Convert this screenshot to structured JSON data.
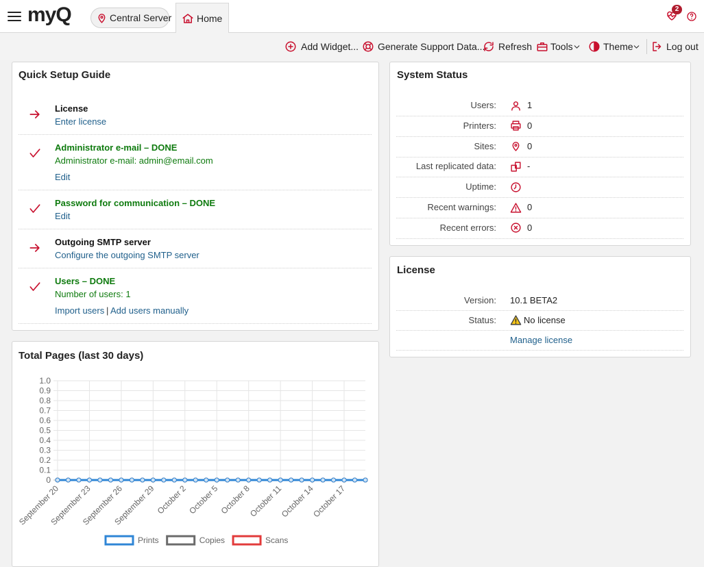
{
  "header": {
    "logo": "myQ",
    "location": "Central Server",
    "tab": "Home",
    "notification_count": 2
  },
  "toolbar": [
    "Add Widget...",
    "Generate Support Data...",
    "Refresh",
    "Tools",
    "Theme",
    "Log out"
  ],
  "quick_setup": {
    "title": "Quick Setup Guide",
    "steps": [
      {
        "title": "License",
        "done": false,
        "links": [
          "Enter license"
        ]
      },
      {
        "title": "Administrator e-mail – DONE",
        "done": true,
        "text": "Administrator e-mail: admin@email.com",
        "links": [
          "Edit"
        ]
      },
      {
        "title": "Password for communication – DONE",
        "done": true,
        "links": [
          "Edit"
        ]
      },
      {
        "title": "Outgoing SMTP server",
        "done": false,
        "links": [
          "Configure the outgoing SMTP server"
        ]
      },
      {
        "title": "Users – DONE",
        "done": true,
        "text": "Number of users: 1",
        "links": [
          "Import users",
          "Add users manually"
        ],
        "separator": "|"
      }
    ]
  },
  "system_status": {
    "title": "System Status",
    "rows": [
      {
        "label": "Users:",
        "link": true,
        "value": "1"
      },
      {
        "label": "Printers:",
        "link": true,
        "value": "0"
      },
      {
        "label": "Sites:",
        "link": true,
        "value": "0"
      },
      {
        "label": "Last replicated data:",
        "value": "-"
      },
      {
        "label": "Uptime:"
      },
      {
        "label": "Recent warnings:",
        "value": "0"
      },
      {
        "label": "Recent errors:",
        "value": "0"
      }
    ]
  },
  "license": {
    "title": "License",
    "rows": [
      {
        "label": "Version:",
        "value": "10.1 BETA2"
      },
      {
        "label": "Status:",
        "value": "No license"
      }
    ],
    "link": "Manage license"
  },
  "chart_data": {
    "type": "line",
    "title": "Total Pages (last 30 days)",
    "categories": [
      "September 20",
      null,
      null,
      "September 23",
      null,
      null,
      "September 26",
      null,
      null,
      "September 29",
      null,
      null,
      "October 2",
      null,
      null,
      "October 5",
      null,
      null,
      "October 8",
      null,
      null,
      "October 11",
      null,
      null,
      "October 14",
      null,
      null,
      "October 17",
      null,
      null
    ],
    "series": [
      {
        "name": "Prints",
        "color": "#2f86d6",
        "values": [
          0,
          0,
          0,
          0,
          0,
          0,
          0,
          0,
          0,
          0,
          0,
          0,
          0,
          0,
          0,
          0,
          0,
          0,
          0,
          0,
          0,
          0,
          0,
          0,
          0,
          0,
          0,
          0,
          0,
          0
        ]
      },
      {
        "name": "Copies",
        "color": "#6b6b6b",
        "values": [
          0,
          0,
          0,
          0,
          0,
          0,
          0,
          0,
          0,
          0,
          0,
          0,
          0,
          0,
          0,
          0,
          0,
          0,
          0,
          0,
          0,
          0,
          0,
          0,
          0,
          0,
          0,
          0,
          0,
          0
        ]
      },
      {
        "name": "Scans",
        "color": "#e23b3b",
        "values": [
          0,
          0,
          0,
          0,
          0,
          0,
          0,
          0,
          0,
          0,
          0,
          0,
          0,
          0,
          0,
          0,
          0,
          0,
          0,
          0,
          0,
          0,
          0,
          0,
          0,
          0,
          0,
          0,
          0,
          0
        ]
      }
    ],
    "ylim": [
      0,
      1
    ],
    "yticks": [
      0,
      0.1,
      0.2,
      0.3,
      0.4,
      0.5,
      0.6,
      0.7,
      0.8,
      0.9,
      {
        "value": 1,
        "label": "1.0"
      }
    ],
    "grid": true,
    "legend": "bottom"
  }
}
